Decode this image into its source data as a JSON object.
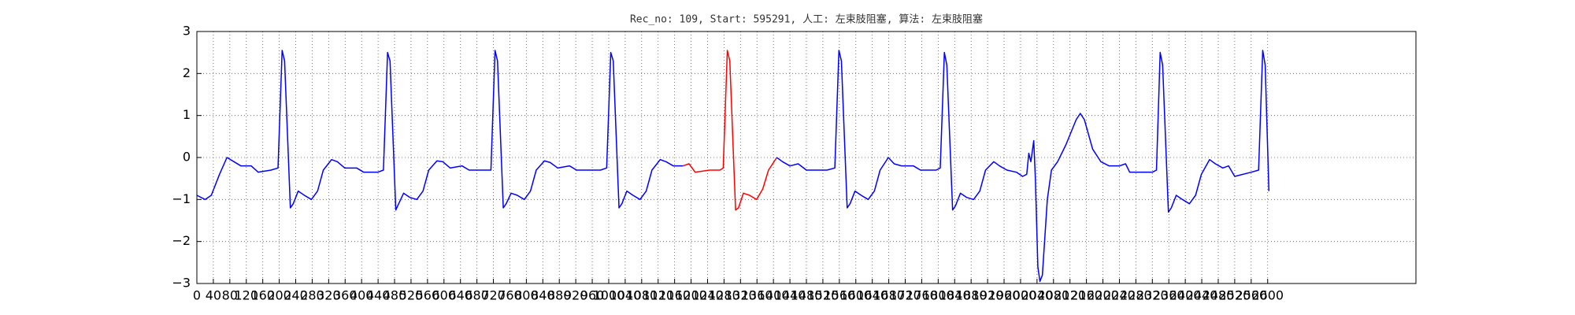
{
  "chart_data": {
    "type": "line",
    "title": "Rec_no: 109, Start: 595291, 人工: 左束肢阻塞, 算法: 左束肢阻塞",
    "xlim": [
      0,
      2960
    ],
    "ylim": [
      -3,
      3
    ],
    "grid": true,
    "yticks": [
      {
        "value": -3,
        "label": "−3"
      },
      {
        "value": -2,
        "label": "−2"
      },
      {
        "value": -1,
        "label": "−1"
      },
      0,
      1,
      2,
      3
    ],
    "xticks": [
      0,
      40,
      80,
      120,
      160,
      200,
      240,
      280,
      320,
      360,
      400,
      440,
      480,
      520,
      560,
      600,
      640,
      680,
      720,
      760,
      800,
      840,
      880,
      920,
      960,
      1000,
      1040,
      1080,
      1120,
      1160,
      1200,
      1240,
      1280,
      1320,
      1360,
      1400,
      1440,
      1480,
      1520,
      1560,
      1600,
      1640,
      1680,
      1720,
      1760,
      1800,
      1840,
      1880,
      1920,
      1960,
      2000,
      2040,
      2080,
      2120,
      2160,
      2200,
      2240,
      2280,
      2320,
      2360,
      2400,
      2440,
      2480,
      2520,
      2560,
      2600
    ],
    "series": [
      {
        "color": "#0000ff",
        "x": [
          0,
          20,
          35,
          55,
          73,
          90,
          107,
          132,
          149,
          180,
          197,
          207,
          213,
          227,
          234,
          246,
          261,
          278,
          293,
          307,
          327,
          341,
          359,
          388,
          405,
          439,
          453,
          463,
          469,
          483,
          490,
          502,
          517,
          534,
          549,
          563,
          583,
          597,
          615,
          644,
          661,
          700,
          714,
          724,
          730,
          744,
          751,
          763,
          778,
          795,
          810,
          824,
          844,
          858,
          876,
          905,
          922,
          980,
          995,
          1005,
          1011,
          1025,
          1032,
          1044,
          1059,
          1076,
          1091,
          1105,
          1125,
          1139,
          1157,
          1180
        ],
        "values": [
          -0.9,
          -1.0,
          -0.9,
          -0.4,
          0,
          -0.1,
          -0.2,
          -0.2,
          -0.35,
          -0.3,
          -0.25,
          2.55,
          2.3,
          -1.2,
          -1.1,
          -0.8,
          -0.9,
          -1.0,
          -0.8,
          -0.3,
          -0.05,
          -0.1,
          -0.25,
          -0.25,
          -0.35,
          -0.35,
          -0.3,
          2.5,
          2.3,
          -1.25,
          -1.1,
          -0.85,
          -0.95,
          -1.0,
          -0.8,
          -0.3,
          -0.08,
          -0.1,
          -0.25,
          -0.2,
          -0.3,
          -0.3,
          -0.3,
          2.55,
          2.3,
          -1.2,
          -1.1,
          -0.85,
          -0.9,
          -1.0,
          -0.8,
          -0.3,
          -0.08,
          -0.12,
          -0.25,
          -0.2,
          -0.3,
          -0.3,
          -0.25,
          2.5,
          2.3,
          -1.2,
          -1.1,
          -0.8,
          -0.9,
          -1.0,
          -0.8,
          -0.3,
          -0.05,
          -0.1,
          -0.2,
          -0.2
        ]
      },
      {
        "color": "#ff0000",
        "x": [
          1180,
          1195,
          1210,
          1245,
          1270,
          1278,
          1288,
          1294,
          1308,
          1315,
          1327,
          1342,
          1359,
          1374,
          1388,
          1408
        ],
        "values": [
          -0.2,
          -0.15,
          -0.35,
          -0.3,
          -0.3,
          -0.25,
          2.55,
          2.3,
          -1.25,
          -1.2,
          -0.85,
          -0.9,
          -1.0,
          -0.75,
          -0.3,
          0.0
        ]
      },
      {
        "color": "#0000ff",
        "x": [
          1408,
          1422,
          1440,
          1460,
          1480,
          1530,
          1549,
          1559,
          1565,
          1579,
          1586,
          1598,
          1613,
          1630,
          1645,
          1659,
          1679,
          1693,
          1711,
          1740,
          1757,
          1795,
          1805,
          1815,
          1821,
          1835,
          1842,
          1854,
          1869,
          1886,
          1901,
          1915,
          1935,
          1949,
          1967,
          1990,
          2005,
          2015,
          2020,
          2025,
          2032,
          2036,
          2042,
          2047,
          2053,
          2065,
          2075,
          2090,
          2110,
          2135,
          2145,
          2155,
          2175,
          2195,
          2215,
          2240,
          2255,
          2265,
          2320,
          2330,
          2339,
          2345,
          2359,
          2366,
          2378,
          2393,
          2410,
          2425,
          2439,
          2459,
          2473,
          2491,
          2505,
          2520,
          2560,
          2578,
          2588,
          2594,
          2603
        ],
        "values": [
          0.0,
          -0.1,
          -0.2,
          -0.15,
          -0.3,
          -0.3,
          -0.25,
          2.55,
          2.3,
          -1.2,
          -1.1,
          -0.8,
          -0.9,
          -1.0,
          -0.8,
          -0.3,
          0.0,
          -0.15,
          -0.2,
          -0.2,
          -0.3,
          -0.3,
          -0.25,
          2.5,
          2.2,
          -1.25,
          -1.15,
          -0.85,
          -0.95,
          -1.0,
          -0.8,
          -0.3,
          -0.1,
          -0.2,
          -0.3,
          -0.35,
          -0.45,
          -0.4,
          0.1,
          -0.1,
          0.4,
          -0.5,
          -2.6,
          -2.95,
          -2.8,
          -1.0,
          -0.3,
          -0.1,
          0.3,
          0.9,
          1.05,
          0.9,
          0.2,
          -0.1,
          -0.2,
          -0.2,
          -0.15,
          -0.35,
          -0.35,
          -0.3,
          2.5,
          2.2,
          -1.3,
          -1.2,
          -0.9,
          -1.0,
          -1.1,
          -0.9,
          -0.4,
          -0.05,
          -0.15,
          -0.25,
          -0.2,
          -0.45,
          -0.35,
          -0.3,
          2.55,
          2.2,
          -0.8
        ]
      }
    ]
  }
}
